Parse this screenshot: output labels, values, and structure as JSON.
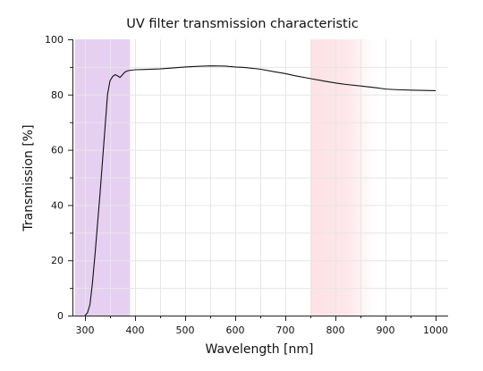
{
  "chart_data": {
    "type": "line",
    "title": "UV filter transmission characteristic",
    "xlabel": "Wavelength [nm]",
    "ylabel": "Transmission [%]",
    "xlim": [
      275,
      1025
    ],
    "ylim": [
      0,
      100
    ],
    "x_ticks": [
      300,
      400,
      500,
      600,
      700,
      800,
      900,
      1000
    ],
    "y_ticks": [
      0,
      20,
      40,
      60,
      80,
      100
    ],
    "grid": true,
    "legend": "none",
    "bands": [
      {
        "name": "uv-region",
        "x_start": 280,
        "x_end": 390,
        "color": "#e6d0f2",
        "gradient": false
      },
      {
        "name": "ir-region",
        "x_start": 750,
        "x_end": 880,
        "color": "#fde2e6",
        "gradient": true
      }
    ],
    "series": [
      {
        "color": "#111111",
        "x": [
          300,
          305,
          310,
          315,
          320,
          325,
          330,
          335,
          340,
          345,
          350,
          355,
          360,
          365,
          370,
          375,
          380,
          385,
          390,
          400,
          420,
          450,
          480,
          500,
          520,
          550,
          580,
          600,
          620,
          650,
          680,
          700,
          720,
          750,
          780,
          800,
          820,
          850,
          880,
          900,
          920,
          950,
          980,
          1000
        ],
        "y": [
          0,
          1,
          4,
          12,
          22,
          33,
          44,
          56,
          68,
          80,
          85,
          86.5,
          87.2,
          86.8,
          86.2,
          87.2,
          88.2,
          88.6,
          88.8,
          89,
          89.1,
          89.3,
          89.7,
          90,
          90.2,
          90.4,
          90.3,
          90,
          89.8,
          89.2,
          88.2,
          87.6,
          86.8,
          85.8,
          84.8,
          84.2,
          83.7,
          83.1,
          82.5,
          82,
          81.8,
          81.6,
          81.5,
          81.4
        ]
      }
    ]
  }
}
